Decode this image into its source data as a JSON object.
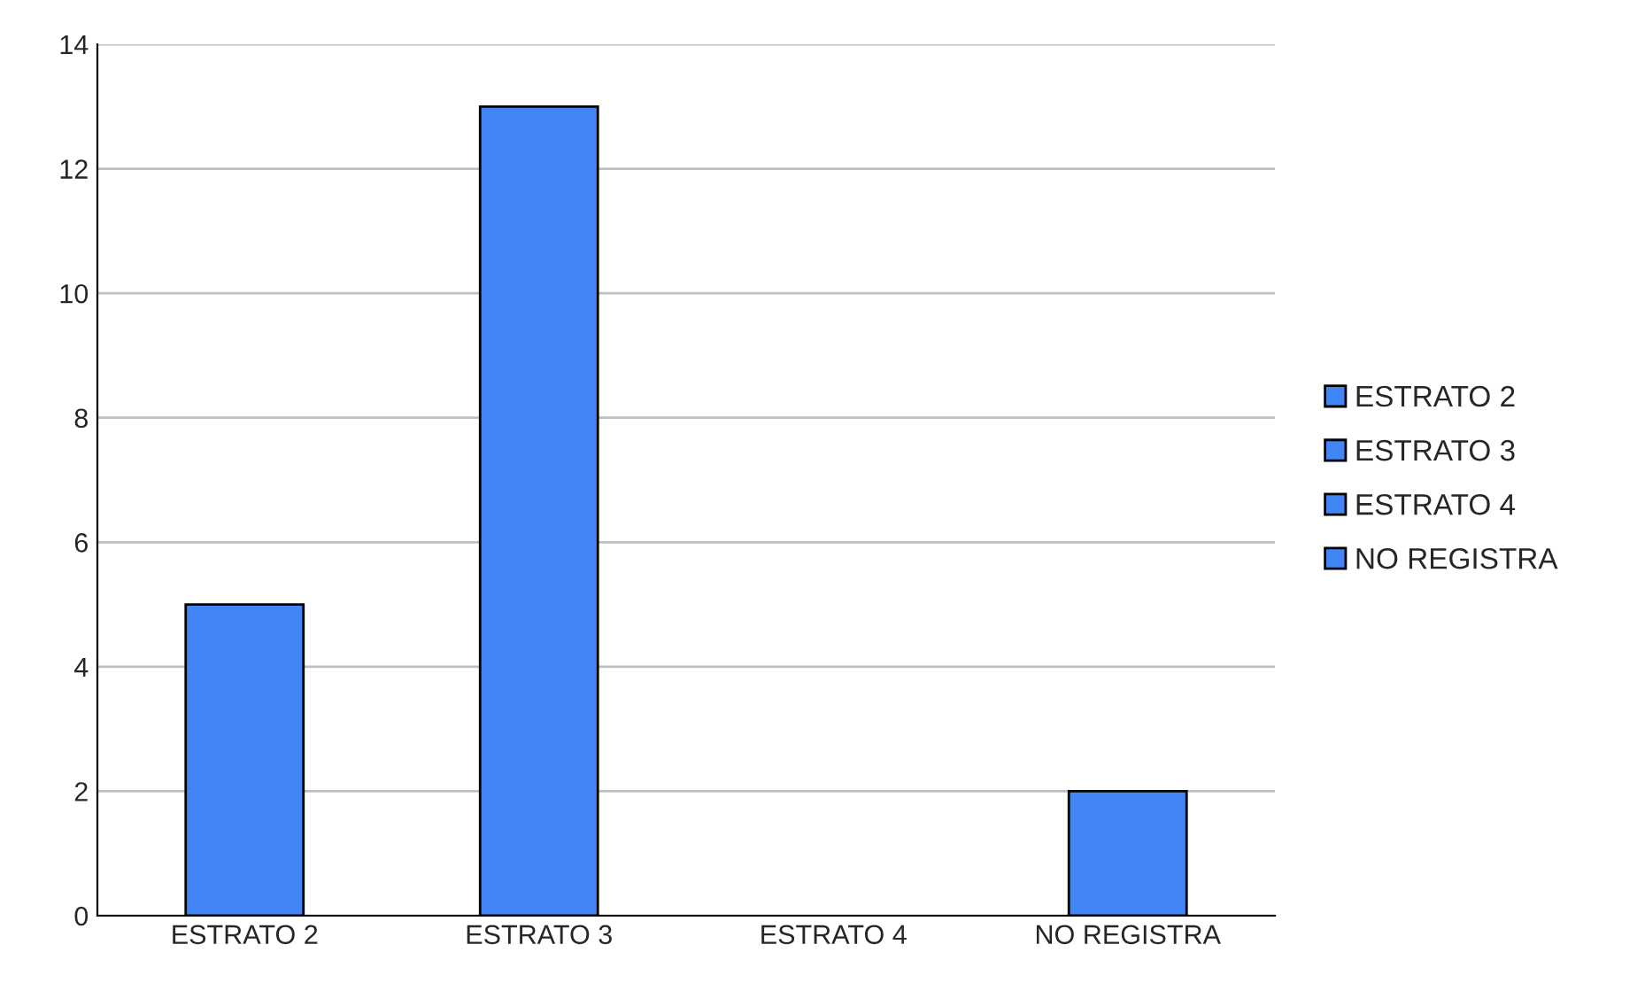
{
  "chart_data": {
    "type": "bar",
    "categories": [
      "ESTRATO 2",
      "ESTRATO 3",
      "ESTRATO 4",
      "NO REGISTRA"
    ],
    "stacked": true,
    "series": [
      {
        "name": "ESTRATO 2",
        "color": "#4285f4",
        "values": [
          5,
          null,
          null,
          null
        ]
      },
      {
        "name": "ESTRATO 3",
        "color": "#4285f4",
        "values": [
          null,
          13,
          null,
          null
        ]
      },
      {
        "name": "ESTRATO 4",
        "color": "#4285f4",
        "values": [
          null,
          null,
          0,
          null
        ]
      },
      {
        "name": "NO REGISTRA",
        "color": "#4285f4",
        "values": [
          null,
          null,
          null,
          2
        ]
      }
    ],
    "ylim": [
      0,
      14
    ],
    "yticks": [
      0,
      2,
      4,
      6,
      8,
      10,
      12,
      14
    ],
    "grid": "y",
    "legend": "right"
  }
}
